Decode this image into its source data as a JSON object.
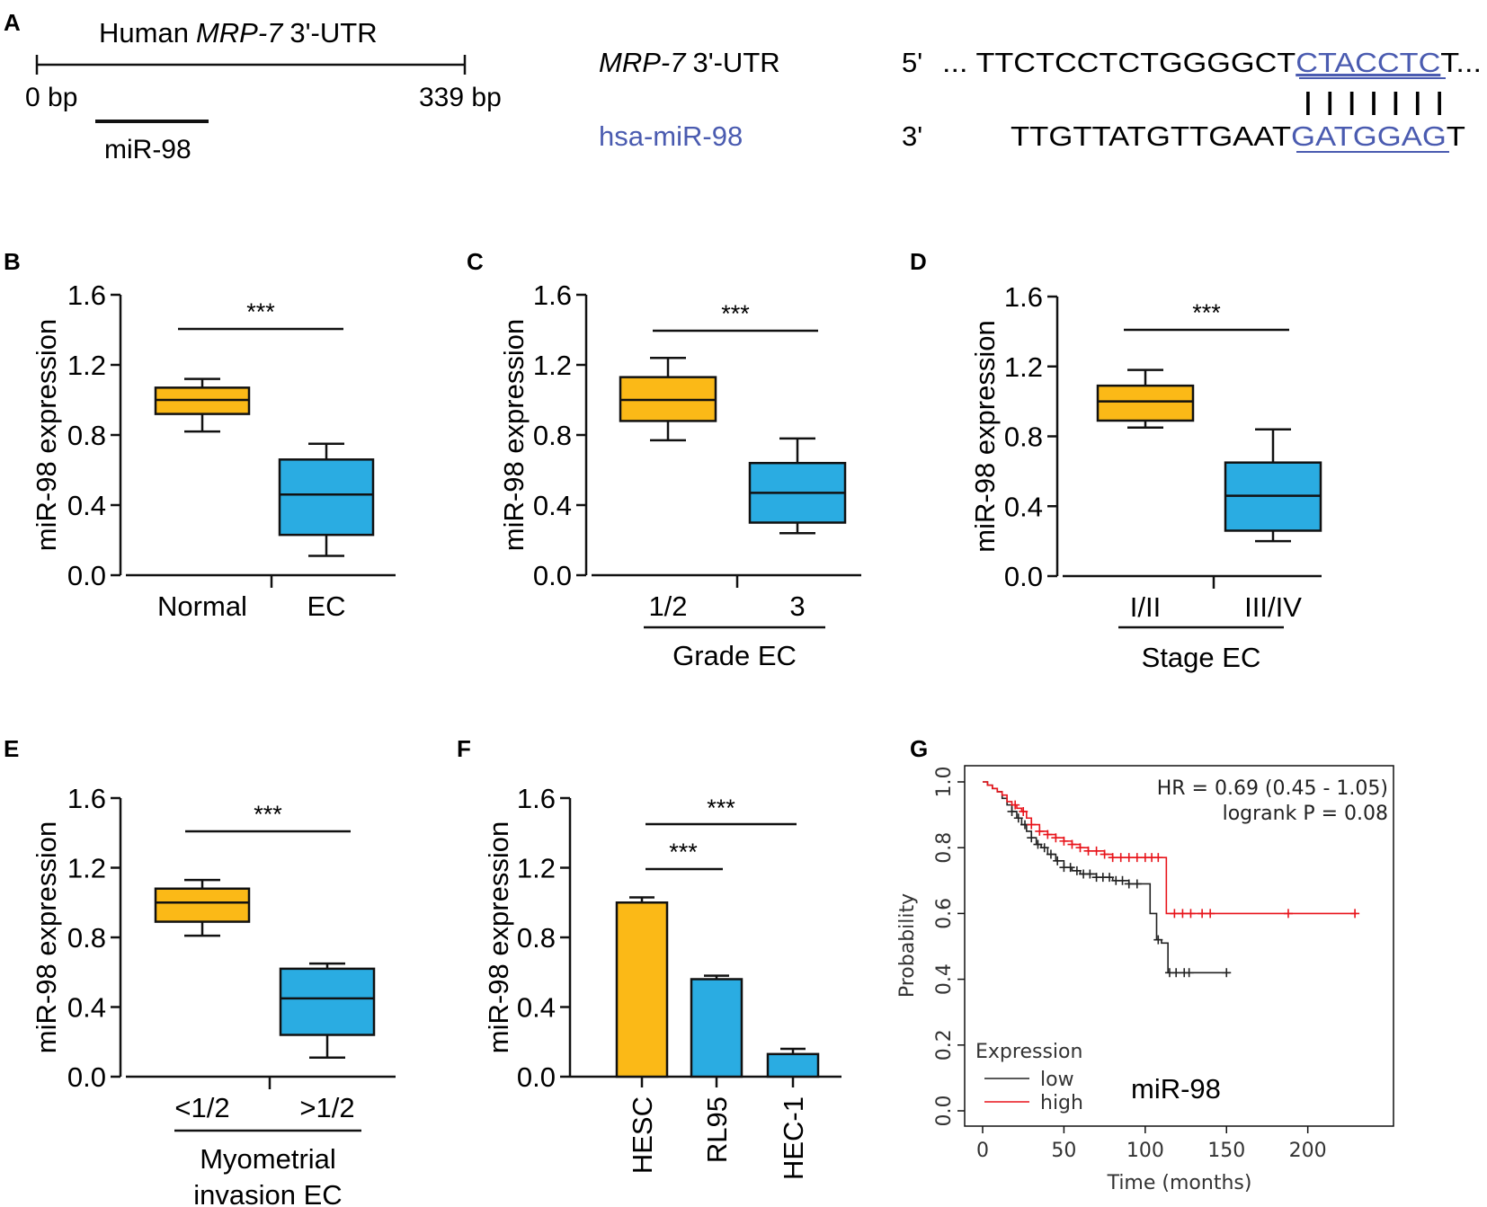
{
  "colors": {
    "orange": "#FBB917",
    "blue": "#2AACE2",
    "mirna_blue": "#4A5BB0",
    "km_low": "#222222",
    "km_high": "#E8141B",
    "text": "#111111"
  },
  "panel_a": {
    "label": "A",
    "utr_title_prefix": "Human",
    "utr_title_gene": "MRP-7",
    "utr_title_suffix": "3'-UTR",
    "scale_start": "0 bp",
    "scale_end": "339 bp",
    "site_label": "miR-98",
    "row1_gene": "MRP-7",
    "row1_suffix": "3'-UTR",
    "row2_label": "hsa-miR-98",
    "row1_end": "5'",
    "row2_end": "3'",
    "seq1_lead": "... TTCTCCTCTGGGGCT",
    "seq1_seed": "CTACCTC",
    "seq1_tail": "T...",
    "pairing": "| | | | | | |",
    "seq2_lead": "TTGTTATGTTGAAT",
    "seq2_seed": "GATGGAG",
    "seq2_tail": "T"
  },
  "chart_data": [
    {
      "panel": "B",
      "type": "box",
      "ylabel": "miR-98 expression",
      "ylim": [
        0,
        1.6
      ],
      "yticks": [
        "0.0",
        "0.4",
        "0.8",
        "1.2",
        "1.6"
      ],
      "categories": [
        "Normal",
        "EC"
      ],
      "boxes": [
        {
          "min": 0.82,
          "q1": 0.92,
          "median": 1.0,
          "q3": 1.07,
          "max": 1.12
        },
        {
          "min": 0.11,
          "q1": 0.23,
          "median": 0.46,
          "q3": 0.66,
          "max": 0.75
        }
      ],
      "significance": "***"
    },
    {
      "panel": "C",
      "type": "box",
      "ylabel": "miR-98 expression",
      "ylim": [
        0,
        1.6
      ],
      "yticks": [
        "0.0",
        "0.4",
        "0.8",
        "1.2",
        "1.6"
      ],
      "categories": [
        "1/2",
        "3"
      ],
      "group_label": "Grade EC",
      "boxes": [
        {
          "min": 0.77,
          "q1": 0.88,
          "median": 1.0,
          "q3": 1.13,
          "max": 1.24
        },
        {
          "min": 0.24,
          "q1": 0.3,
          "median": 0.47,
          "q3": 0.64,
          "max": 0.78
        }
      ],
      "significance": "***"
    },
    {
      "panel": "D",
      "type": "box",
      "ylabel": "miR-98 expression",
      "ylim": [
        0,
        1.6
      ],
      "yticks": [
        "0.0",
        "0.4",
        "0.8",
        "1.2",
        "1.6"
      ],
      "categories": [
        "I/II",
        "III/IV"
      ],
      "group_label": "Stage EC",
      "boxes": [
        {
          "min": 0.85,
          "q1": 0.89,
          "median": 1.0,
          "q3": 1.09,
          "max": 1.18
        },
        {
          "min": 0.2,
          "q1": 0.26,
          "median": 0.46,
          "q3": 0.65,
          "max": 0.84
        }
      ],
      "significance": "***"
    },
    {
      "panel": "E",
      "type": "box",
      "ylabel": "miR-98 expression",
      "ylim": [
        0,
        1.6
      ],
      "yticks": [
        "0.0",
        "0.4",
        "0.8",
        "1.2",
        "1.6"
      ],
      "categories": [
        "<1/2",
        ">1/2"
      ],
      "group_label_line1": "Myometrial",
      "group_label_line2": "invasion EC",
      "boxes": [
        {
          "min": 0.81,
          "q1": 0.89,
          "median": 1.0,
          "q3": 1.08,
          "max": 1.13
        },
        {
          "min": 0.11,
          "q1": 0.24,
          "median": 0.45,
          "q3": 0.62,
          "max": 0.65
        }
      ],
      "significance": "***"
    },
    {
      "panel": "F",
      "type": "bar",
      "ylabel": "miR-98 expression",
      "ylim": [
        0,
        1.6
      ],
      "yticks": [
        "0.0",
        "0.4",
        "0.8",
        "1.2",
        "1.6"
      ],
      "categories": [
        "HESC",
        "RL95",
        "HEC-1"
      ],
      "values": [
        1.0,
        0.56,
        0.13
      ],
      "errors": [
        0.03,
        0.02,
        0.03
      ],
      "significance": [
        "***",
        "***"
      ]
    },
    {
      "panel": "G",
      "type": "line",
      "subtype": "kaplan-meier",
      "xlabel": "Time (months)",
      "ylabel": "Probability",
      "xlim": [
        0,
        240
      ],
      "ylim": [
        0,
        1
      ],
      "xticks": [
        "0",
        "50",
        "100",
        "150",
        "200"
      ],
      "yticks": [
        "0.0",
        "0.2",
        "0.4",
        "0.6",
        "0.8",
        "1.0"
      ],
      "legend_title": "Expression",
      "annotation_hr": "HR = 0.69 (0.45 - 1.05)",
      "annotation_p": "logrank P = 0.08",
      "inset_label": "miR-98",
      "series": [
        {
          "name": "low",
          "x": [
            0,
            3,
            6,
            9,
            12,
            15,
            18,
            21,
            24,
            27,
            30,
            33,
            36,
            40,
            45,
            50,
            55,
            60,
            70,
            80,
            90,
            100,
            103,
            107,
            110,
            114,
            152
          ],
          "y": [
            1.0,
            0.99,
            0.98,
            0.97,
            0.95,
            0.93,
            0.91,
            0.89,
            0.87,
            0.85,
            0.83,
            0.81,
            0.8,
            0.78,
            0.76,
            0.74,
            0.73,
            0.72,
            0.71,
            0.7,
            0.69,
            0.69,
            0.6,
            0.52,
            0.51,
            0.42,
            0.42
          ],
          "censor_x": [
            18,
            22,
            26,
            30,
            34,
            38,
            42,
            46,
            50,
            54,
            58,
            62,
            66,
            70,
            74,
            78,
            82,
            86,
            90,
            95,
            108,
            115,
            119,
            124,
            127,
            150
          ]
        },
        {
          "name": "high",
          "x": [
            0,
            3,
            6,
            9,
            12,
            15,
            18,
            21,
            24,
            27,
            30,
            35,
            40,
            45,
            50,
            55,
            60,
            65,
            70,
            75,
            80,
            90,
            100,
            110,
            113,
            230
          ],
          "y": [
            1.0,
            0.99,
            0.98,
            0.97,
            0.96,
            0.94,
            0.93,
            0.92,
            0.91,
            0.89,
            0.87,
            0.85,
            0.84,
            0.83,
            0.82,
            0.81,
            0.8,
            0.79,
            0.79,
            0.78,
            0.77,
            0.77,
            0.77,
            0.77,
            0.6,
            0.6
          ],
          "censor_x": [
            20,
            25,
            30,
            35,
            40,
            45,
            50,
            55,
            60,
            65,
            70,
            75,
            80,
            85,
            90,
            95,
            100,
            104,
            108,
            118,
            123,
            128,
            135,
            140,
            188,
            229
          ]
        }
      ]
    }
  ]
}
